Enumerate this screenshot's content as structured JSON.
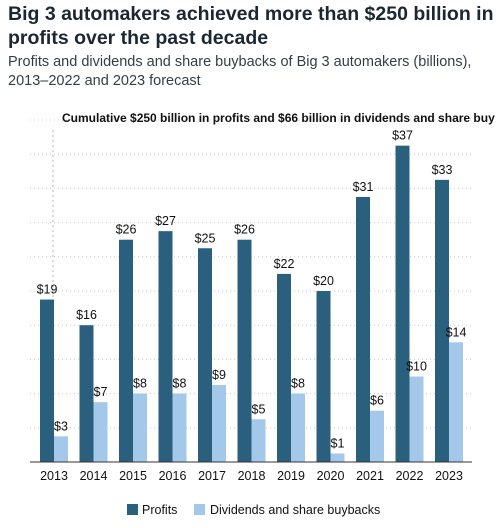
{
  "chart_data": {
    "type": "bar",
    "title": "Big 3 automakers achieved more than $250 billion in profits over the past decade",
    "subtitle": "Profits and dividends and share buybacks of Big 3 automakers (billions), 2013–2022 and 2023 forecast",
    "annotation": "Cumulative $250 billion in profits and $66 billion in dividends and share buy",
    "categories": [
      "2013",
      "2014",
      "2015",
      "2016",
      "2017",
      "2018",
      "2019",
      "2020",
      "2021",
      "2022",
      "2023"
    ],
    "series": [
      {
        "name": "Profits",
        "values": [
          19,
          16,
          26,
          27,
          25,
          26,
          22,
          20,
          31,
          37,
          33
        ],
        "labels": [
          "$19",
          "$16",
          "$26",
          "$27",
          "$25",
          "$26",
          "$22",
          "$20",
          "$31",
          "$37",
          "$33"
        ],
        "color": "#2b5f7e"
      },
      {
        "name": "Dividends and share buybacks",
        "values": [
          3,
          7,
          8,
          8,
          9,
          5,
          8,
          1,
          6,
          10,
          14
        ],
        "labels": [
          "$3",
          "$7",
          "$8",
          "$8",
          "$9",
          "$5",
          "$8",
          "$1",
          "$6",
          "$10",
          "$14"
        ],
        "color": "#a3c8ea"
      }
    ],
    "ylim": [
      0,
      40
    ],
    "grid": true,
    "legend_position": "bottom"
  }
}
